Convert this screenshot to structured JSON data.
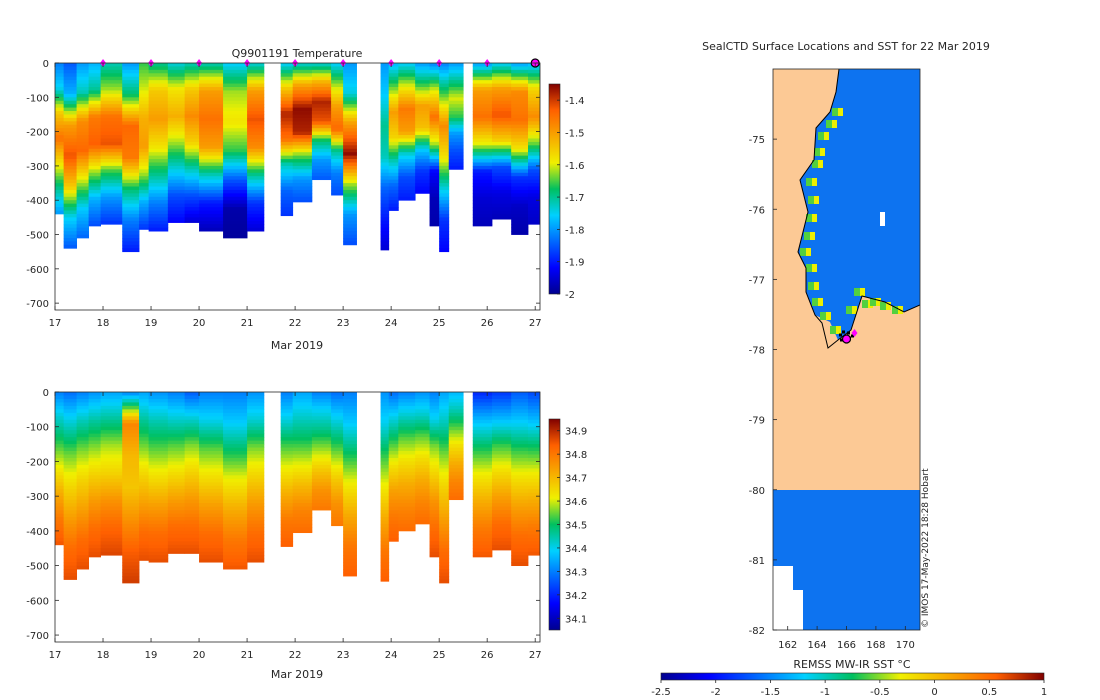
{
  "chart_data": [
    {
      "type": "heatmap",
      "name": "temperature-section",
      "title": "Q9901191  Temperature",
      "xlabel": "Mar 2019",
      "ylabel": "",
      "xlim": [
        17,
        27.1
      ],
      "ylim": [
        -720,
        0
      ],
      "xticks": [
        "17",
        "18",
        "19",
        "20",
        "21",
        "22",
        "23",
        "24",
        "25",
        "26",
        "27"
      ],
      "yticks": [
        "0",
        "-100",
        "-200",
        "-300",
        "-400",
        "-500",
        "-600",
        "-700"
      ],
      "colorbar": {
        "min": -2.0,
        "max": -1.35,
        "ticks": [
          "-1.4",
          "-1.5",
          "-1.6",
          "-1.7",
          "-1.8",
          "-1.9",
          "-2"
        ]
      },
      "surface_markers_day": [
        18,
        19,
        20,
        21,
        22,
        23,
        24,
        25,
        26
      ],
      "last_marker_day": 27,
      "profiles": [
        {
          "x0": 17.0,
          "x1": 17.18,
          "depth": 440,
          "vals": [
            -1.82,
            -1.75,
            -1.55,
            -1.45,
            -1.58,
            -1.7,
            -1.8
          ]
        },
        {
          "x0": 17.18,
          "x1": 17.45,
          "depth": 540,
          "vals": [
            -1.85,
            -1.78,
            -1.5,
            -1.42,
            -1.55,
            -1.75,
            -1.85
          ]
        },
        {
          "x0": 17.45,
          "x1": 17.7,
          "depth": 510,
          "vals": [
            -1.8,
            -1.72,
            -1.48,
            -1.44,
            -1.6,
            -1.76,
            -1.84
          ]
        },
        {
          "x0": 17.7,
          "x1": 17.95,
          "depth": 475,
          "vals": [
            -1.78,
            -1.7,
            -1.46,
            -1.43,
            -1.62,
            -1.78,
            -1.86
          ]
        },
        {
          "x0": 17.95,
          "x1": 18.4,
          "depth": 470,
          "vals": [
            -1.72,
            -1.62,
            -1.45,
            -1.42,
            -1.65,
            -1.8,
            -1.88
          ]
        },
        {
          "x0": 18.4,
          "x1": 18.75,
          "depth": 550,
          "vals": [
            -1.8,
            -1.68,
            -1.44,
            -1.46,
            -1.68,
            -1.82,
            -1.9
          ]
        },
        {
          "x0": 18.75,
          "x1": 18.95,
          "depth": 485,
          "vals": [
            -1.66,
            -1.6,
            -1.52,
            -1.5,
            -1.62,
            -1.78,
            -1.88
          ]
        },
        {
          "x0": 18.95,
          "x1": 19.35,
          "depth": 490,
          "vals": [
            -1.7,
            -1.55,
            -1.5,
            -1.58,
            -1.7,
            -1.82,
            -1.9
          ]
        },
        {
          "x0": 19.35,
          "x1": 19.7,
          "depth": 465,
          "vals": [
            -1.74,
            -1.58,
            -1.52,
            -1.62,
            -1.74,
            -1.86,
            -1.92
          ]
        },
        {
          "x0": 19.7,
          "x1": 20.0,
          "depth": 465,
          "vals": [
            -1.72,
            -1.55,
            -1.48,
            -1.56,
            -1.72,
            -1.86,
            -1.95
          ]
        },
        {
          "x0": 20.0,
          "x1": 20.5,
          "depth": 490,
          "vals": [
            -1.72,
            -1.5,
            -1.45,
            -1.5,
            -1.72,
            -1.9,
            -1.97
          ]
        },
        {
          "x0": 20.5,
          "x1": 21.0,
          "depth": 510,
          "vals": [
            -1.76,
            -1.62,
            -1.58,
            -1.66,
            -1.85,
            -1.98,
            -1.99
          ]
        },
        {
          "x0": 21.0,
          "x1": 21.35,
          "depth": 490,
          "vals": [
            -1.74,
            -1.5,
            -1.42,
            -1.48,
            -1.7,
            -1.88,
            -1.95
          ]
        },
        {
          "x0": 21.7,
          "x1": 21.95,
          "depth": 445,
          "vals": [
            -1.76,
            -1.55,
            -1.38,
            -1.45,
            -1.72,
            -1.84,
            -1.88
          ]
        },
        {
          "x0": 21.95,
          "x1": 22.35,
          "depth": 405,
          "vals": [
            -1.74,
            -1.5,
            -1.36,
            -1.38,
            -1.64,
            -1.8,
            -1.86
          ]
        },
        {
          "x0": 22.35,
          "x1": 22.75,
          "depth": 340,
          "vals": [
            -1.74,
            -1.52,
            -1.38,
            -1.42,
            -1.68,
            -1.8,
            -1.85
          ]
        },
        {
          "x0": 22.75,
          "x1": 23.0,
          "depth": 385,
          "vals": [
            -1.76,
            -1.62,
            -1.5,
            -1.44,
            -1.7,
            -1.82,
            -1.86
          ]
        },
        {
          "x0": 23.0,
          "x1": 23.28,
          "depth": 530,
          "vals": [
            -1.8,
            -1.74,
            -1.5,
            -1.36,
            -1.62,
            -1.8,
            -1.86
          ]
        },
        {
          "x0": 23.78,
          "x1": 23.95,
          "depth": 545,
          "vals": [
            -1.8,
            -1.76,
            -1.7,
            -1.72,
            -1.84,
            -1.9,
            -1.95
          ]
        },
        {
          "x0": 23.95,
          "x1": 24.15,
          "depth": 430,
          "vals": [
            -1.78,
            -1.64,
            -1.5,
            -1.56,
            -1.72,
            -1.84,
            -1.9
          ]
        },
        {
          "x0": 24.15,
          "x1": 24.5,
          "depth": 400,
          "vals": [
            -1.76,
            -1.6,
            -1.46,
            -1.5,
            -1.74,
            -1.86,
            -1.9
          ]
        },
        {
          "x0": 24.5,
          "x1": 24.8,
          "depth": 380,
          "vals": [
            -1.8,
            -1.66,
            -1.5,
            -1.54,
            -1.76,
            -1.88,
            -1.92
          ]
        },
        {
          "x0": 24.8,
          "x1": 25.0,
          "depth": 475,
          "vals": [
            -1.82,
            -1.6,
            -1.45,
            -1.62,
            -1.92,
            -1.97,
            -1.98
          ]
        },
        {
          "x0": 25.0,
          "x1": 25.2,
          "depth": 550,
          "vals": [
            -1.82,
            -1.65,
            -1.48,
            -1.58,
            -1.74,
            -1.88,
            -1.92
          ]
        },
        {
          "x0": 25.2,
          "x1": 25.5,
          "depth": 310,
          "vals": [
            -1.8,
            -1.7,
            -1.6,
            -1.66,
            -1.8,
            -1.86,
            -1.9
          ]
        },
        {
          "x0": 25.7,
          "x1": 26.1,
          "depth": 475,
          "vals": [
            -1.8,
            -1.5,
            -1.45,
            -1.6,
            -1.9,
            -1.95,
            -1.97
          ]
        },
        {
          "x0": 26.1,
          "x1": 26.5,
          "depth": 455,
          "vals": [
            -1.76,
            -1.5,
            -1.42,
            -1.56,
            -1.86,
            -1.94,
            -1.97
          ]
        },
        {
          "x0": 26.5,
          "x1": 26.85,
          "depth": 500,
          "vals": [
            -1.8,
            -1.48,
            -1.45,
            -1.58,
            -1.88,
            -1.96,
            -1.98
          ]
        },
        {
          "x0": 26.85,
          "x1": 27.1,
          "depth": 470,
          "vals": [
            -1.78,
            -1.56,
            -1.48,
            -1.64,
            -1.86,
            -1.94,
            -1.96
          ]
        }
      ]
    },
    {
      "type": "heatmap",
      "name": "salinity-section",
      "title": "",
      "xlabel": "Mar 2019",
      "ylabel": "",
      "xlim": [
        17,
        27.1
      ],
      "ylim": [
        -720,
        0
      ],
      "xticks": [
        "17",
        "18",
        "19",
        "20",
        "21",
        "22",
        "23",
        "24",
        "25",
        "26",
        "27"
      ],
      "yticks": [
        "0",
        "-100",
        "-200",
        "-300",
        "-400",
        "-500",
        "-600",
        "-700"
      ],
      "colorbar": {
        "min": 34.05,
        "max": 34.95,
        "ticks": [
          "34.9",
          "34.8",
          "34.7",
          "34.6",
          "34.5",
          "34.4",
          "34.3",
          "34.2",
          "34.1"
        ]
      },
      "profiles": [
        {
          "x0": 17.0,
          "x1": 17.18,
          "depth": 440,
          "vals": [
            34.3,
            34.42,
            34.52,
            34.62,
            34.72,
            34.8,
            34.85
          ]
        },
        {
          "x0": 17.18,
          "x1": 17.45,
          "depth": 540,
          "vals": [
            34.28,
            34.42,
            34.55,
            34.65,
            34.74,
            34.82,
            34.86
          ]
        },
        {
          "x0": 17.45,
          "x1": 17.7,
          "depth": 510,
          "vals": [
            34.3,
            34.44,
            34.56,
            34.66,
            34.74,
            34.82,
            34.86
          ]
        },
        {
          "x0": 17.7,
          "x1": 17.95,
          "depth": 475,
          "vals": [
            34.32,
            34.45,
            34.56,
            34.66,
            34.75,
            34.82,
            34.86
          ]
        },
        {
          "x0": 17.95,
          "x1": 18.4,
          "depth": 470,
          "vals": [
            34.34,
            34.46,
            34.58,
            34.66,
            34.76,
            34.83,
            34.87
          ]
        },
        {
          "x0": 18.4,
          "x1": 18.75,
          "depth": 550,
          "vals": [
            34.3,
            34.78,
            34.7,
            34.68,
            34.76,
            34.84,
            34.88
          ]
        },
        {
          "x0": 18.75,
          "x1": 18.95,
          "depth": 485,
          "vals": [
            34.34,
            34.46,
            34.56,
            34.66,
            34.74,
            34.82,
            34.86
          ]
        },
        {
          "x0": 18.95,
          "x1": 19.35,
          "depth": 490,
          "vals": [
            34.32,
            34.44,
            34.54,
            34.64,
            34.74,
            34.82,
            34.86
          ]
        },
        {
          "x0": 19.35,
          "x1": 19.7,
          "depth": 465,
          "vals": [
            34.3,
            34.42,
            34.54,
            34.64,
            34.74,
            34.82,
            34.86
          ]
        },
        {
          "x0": 19.7,
          "x1": 20.0,
          "depth": 465,
          "vals": [
            34.26,
            34.42,
            34.56,
            34.66,
            34.75,
            34.82,
            34.86
          ]
        },
        {
          "x0": 20.0,
          "x1": 20.5,
          "depth": 490,
          "vals": [
            34.3,
            34.4,
            34.54,
            34.64,
            34.74,
            34.82,
            34.86
          ]
        },
        {
          "x0": 20.5,
          "x1": 21.0,
          "depth": 510,
          "vals": [
            34.3,
            34.38,
            34.5,
            34.62,
            34.72,
            34.8,
            34.85
          ]
        },
        {
          "x0": 21.0,
          "x1": 21.35,
          "depth": 490,
          "vals": [
            34.32,
            34.42,
            34.56,
            34.66,
            34.75,
            34.82,
            34.86
          ]
        },
        {
          "x0": 21.7,
          "x1": 21.95,
          "depth": 445,
          "vals": [
            34.3,
            34.4,
            34.52,
            34.62,
            34.72,
            34.8,
            34.84
          ]
        },
        {
          "x0": 21.95,
          "x1": 22.35,
          "depth": 405,
          "vals": [
            34.34,
            34.42,
            34.5,
            34.6,
            34.7,
            34.78,
            34.82
          ]
        },
        {
          "x0": 22.35,
          "x1": 22.75,
          "depth": 340,
          "vals": [
            34.3,
            34.4,
            34.48,
            34.58,
            34.68,
            34.76,
            34.8
          ]
        },
        {
          "x0": 22.75,
          "x1": 23.0,
          "depth": 385,
          "vals": [
            34.28,
            34.38,
            34.48,
            34.58,
            34.68,
            34.76,
            34.8
          ]
        },
        {
          "x0": 23.0,
          "x1": 23.28,
          "depth": 530,
          "vals": [
            34.3,
            34.38,
            34.5,
            34.62,
            34.72,
            34.8,
            34.84
          ]
        },
        {
          "x0": 23.78,
          "x1": 23.95,
          "depth": 545,
          "vals": [
            34.32,
            34.4,
            34.52,
            34.62,
            34.72,
            34.8,
            34.84
          ]
        },
        {
          "x0": 23.95,
          "x1": 24.15,
          "depth": 430,
          "vals": [
            34.28,
            34.4,
            34.52,
            34.64,
            34.74,
            34.8,
            34.84
          ]
        },
        {
          "x0": 24.15,
          "x1": 24.5,
          "depth": 400,
          "vals": [
            34.3,
            34.42,
            34.54,
            34.64,
            34.72,
            34.78,
            34.82
          ]
        },
        {
          "x0": 24.5,
          "x1": 24.8,
          "depth": 380,
          "vals": [
            34.32,
            34.42,
            34.54,
            34.64,
            34.72,
            34.78,
            34.82
          ]
        },
        {
          "x0": 24.8,
          "x1": 25.0,
          "depth": 475,
          "vals": [
            34.3,
            34.4,
            34.56,
            34.66,
            34.76,
            34.82,
            34.86
          ]
        },
        {
          "x0": 25.0,
          "x1": 25.2,
          "depth": 550,
          "vals": [
            34.34,
            34.44,
            34.56,
            34.66,
            34.74,
            34.82,
            34.86
          ]
        },
        {
          "x0": 25.2,
          "x1": 25.5,
          "depth": 310,
          "vals": [
            34.36,
            34.44,
            34.54,
            34.64,
            34.72,
            34.78,
            34.82
          ]
        },
        {
          "x0": 25.7,
          "x1": 26.1,
          "depth": 475,
          "vals": [
            34.2,
            34.36,
            34.5,
            34.62,
            34.72,
            34.8,
            34.85
          ]
        },
        {
          "x0": 26.1,
          "x1": 26.5,
          "depth": 455,
          "vals": [
            34.22,
            34.36,
            34.52,
            34.64,
            34.74,
            34.82,
            34.86
          ]
        },
        {
          "x0": 26.5,
          "x1": 26.85,
          "depth": 500,
          "vals": [
            34.26,
            34.38,
            34.52,
            34.64,
            34.74,
            34.82,
            34.86
          ]
        },
        {
          "x0": 26.85,
          "x1": 27.1,
          "depth": 470,
          "vals": [
            34.24,
            34.36,
            34.5,
            34.62,
            34.72,
            34.8,
            34.85
          ]
        }
      ]
    },
    {
      "type": "heatmap",
      "name": "sst-map",
      "title": "SealCTD Surface Locations and SST for 22 Mar 2019",
      "xlabel": "",
      "ylabel": "",
      "xlim": [
        161,
        171
      ],
      "ylim": [
        -82,
        -74.0
      ],
      "xticks": [
        "162",
        "164",
        "166",
        "168",
        "170"
      ],
      "yticks": [
        "-75",
        "-76",
        "-77",
        "-78",
        "-79",
        "-80",
        "-81",
        "-82"
      ],
      "sst_value_sea": -1.55,
      "sst_value_shelf": -0.6,
      "colorbar": {
        "label": "REMSS MW-IR SST °C",
        "min": -2.5,
        "max": 1.0,
        "ticks": [
          "-2.5",
          "-2",
          "-1.5",
          "-1",
          "-0.5",
          "0",
          "0.5",
          "1"
        ]
      },
      "ctd_location": {
        "lon": 166.0,
        "lat": -77.85
      },
      "credit": "© IMOS 17-May-2022 18:28 Hobart"
    }
  ]
}
